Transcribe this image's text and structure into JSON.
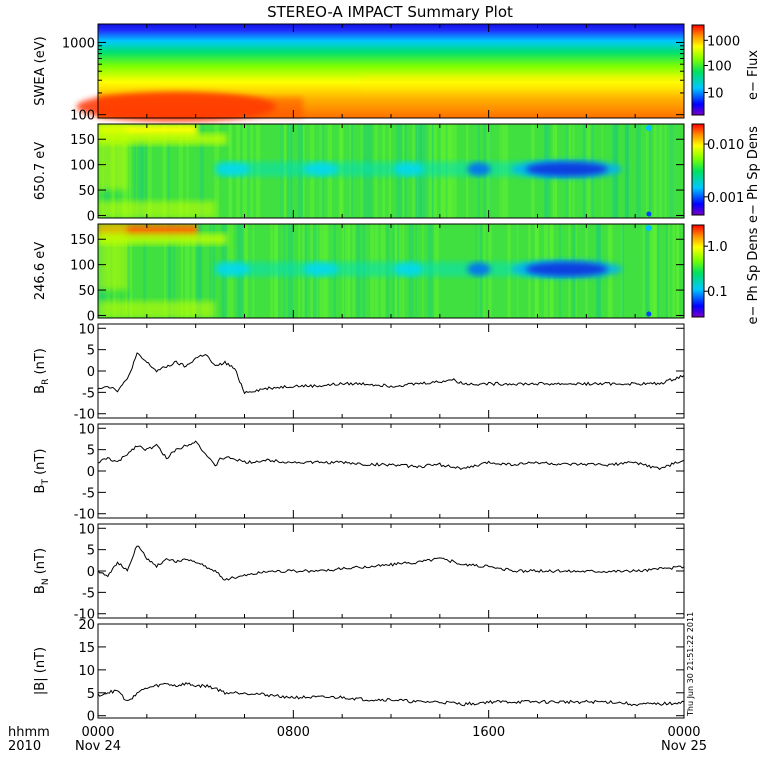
{
  "title": "STEREO-A IMPACT Summary Plot",
  "footer": {
    "hhmm_label": "hhmm",
    "year_label": "2010",
    "x_ticks": [
      "0000",
      "0800",
      "1600",
      "0000"
    ],
    "x_dates": [
      "Nov 24",
      "",
      "",
      "Nov 25"
    ]
  },
  "timestamp": "Thu Jun 30 21:51:22 2011",
  "chart_data": [
    {
      "type": "heatmap",
      "ylabel": "SWEA (eV)",
      "y_ticks": [
        "1000",
        "100"
      ],
      "yscale": "log",
      "ylim": [
        90,
        1800
      ],
      "colorbar": {
        "label": "e− Flux",
        "ticks": [
          "1000",
          "100",
          "10"
        ],
        "scale": "log"
      },
      "colors": [
        "#7a00c8",
        "#0000ff",
        "#00c8ff",
        "#00e060",
        "#7fff00",
        "#ffff00",
        "#ff9000",
        "#ff0000"
      ]
    },
    {
      "type": "heatmap",
      "ylabel": "650.7 eV",
      "y_ticks": [
        "150",
        "100",
        "50",
        "0"
      ],
      "ylim": [
        -5,
        180
      ],
      "colorbar": {
        "label": "e− Ph Sp Dens",
        "ticks": [
          "0.010",
          "0.001"
        ],
        "scale": "log"
      }
    },
    {
      "type": "heatmap",
      "ylabel": "246.6 eV",
      "y_ticks": [
        "150",
        "100",
        "50",
        "0"
      ],
      "ylim": [
        -5,
        180
      ],
      "colorbar": {
        "label": "e− Ph Sp Dens",
        "ticks": [
          "1.0",
          "0.1"
        ],
        "scale": "log"
      }
    },
    {
      "type": "line",
      "ylabel": "B_R (nT)",
      "ylabel_main": "B",
      "ylabel_sub": "R",
      "ylabel_unit": " (nT)",
      "y_ticks": [
        "10",
        "5",
        "0",
        "-5",
        "-10"
      ],
      "ylim": [
        -11,
        11
      ],
      "x_hours": [
        0,
        0.4,
        0.8,
        1.2,
        1.6,
        2,
        2.4,
        2.8,
        3.2,
        3.6,
        4,
        4.4,
        4.8,
        5.2,
        5.6,
        6,
        7,
        8,
        9,
        10,
        11,
        12,
        13,
        14,
        14.5,
        15,
        16,
        17,
        18,
        19,
        20,
        21,
        22,
        23,
        24
      ],
      "values": [
        -4,
        -3.5,
        -4.5,
        -2,
        4,
        2,
        0,
        1,
        2,
        1,
        3,
        4,
        1,
        2,
        0.5,
        -5,
        -4,
        -3.5,
        -3.5,
        -3,
        -3,
        -3.5,
        -3,
        -2.5,
        -2,
        -3,
        -3,
        -3,
        -3,
        -3,
        -3,
        -3,
        -3,
        -3,
        -1
      ]
    },
    {
      "type": "line",
      "ylabel": "B_T (nT)",
      "ylabel_main": "B",
      "ylabel_sub": "T",
      "ylabel_unit": " (nT)",
      "y_ticks": [
        "10",
        "5",
        "0",
        "-5",
        "-10"
      ],
      "ylim": [
        -11,
        11
      ],
      "x_hours": [
        0,
        0.4,
        0.8,
        1.2,
        1.6,
        2,
        2.4,
        2.8,
        3.2,
        3.6,
        4,
        4.4,
        4.8,
        5,
        5.5,
        6,
        7,
        8,
        9,
        10,
        11,
        12,
        13,
        14,
        15,
        16,
        17,
        18,
        19,
        20,
        21,
        22,
        23,
        24
      ],
      "values": [
        2,
        3,
        2,
        4,
        6,
        5,
        6,
        3,
        5,
        6,
        7,
        4,
        1,
        3,
        3,
        2,
        2.5,
        2,
        2,
        2,
        1.5,
        1.5,
        1,
        1.5,
        0.5,
        2,
        1.5,
        2,
        1.5,
        1.5,
        1.5,
        2,
        0.5,
        2.5
      ]
    },
    {
      "type": "line",
      "ylabel": "B_N (nT)",
      "ylabel_main": "B",
      "ylabel_sub": "N",
      "ylabel_unit": " (nT)",
      "y_ticks": [
        "10",
        "5",
        "0",
        "-5",
        "-10"
      ],
      "ylim": [
        -11,
        11
      ],
      "x_hours": [
        0,
        0.4,
        0.8,
        1.2,
        1.6,
        2,
        2.4,
        2.8,
        3.2,
        3.6,
        4,
        4.4,
        4.8,
        5.2,
        6,
        7,
        8,
        9,
        10,
        11,
        12,
        13,
        14,
        15,
        16,
        17,
        18,
        19,
        20,
        21,
        22,
        23,
        24
      ],
      "values": [
        0,
        -1,
        2,
        0,
        6,
        3,
        1,
        3,
        2,
        3,
        2,
        1,
        0,
        -2,
        -1,
        0,
        0,
        0,
        0.5,
        1,
        1.5,
        2,
        3,
        1.5,
        1,
        0,
        0,
        0,
        0,
        0,
        0,
        0.5,
        1
      ]
    },
    {
      "type": "line",
      "ylabel": "|B| (nT)",
      "ylabel_main": "|B|",
      "ylabel_sub": "",
      "ylabel_unit": " (nT)",
      "y_ticks": [
        "20",
        "15",
        "10",
        "5",
        "0"
      ],
      "ylim": [
        -0.5,
        20
      ],
      "x_hours": [
        0,
        0.4,
        0.8,
        1.2,
        1.6,
        2,
        2.4,
        2.8,
        3.2,
        3.6,
        4,
        4.4,
        4.8,
        5.2,
        6,
        7,
        8,
        9,
        10,
        11,
        12,
        13,
        14,
        15,
        16,
        17,
        18,
        19,
        20,
        21,
        22,
        23,
        24
      ],
      "values": [
        4.5,
        5,
        5.5,
        3,
        5,
        6,
        6.5,
        7,
        6.5,
        7,
        6.5,
        6.5,
        6,
        5,
        5,
        4.5,
        4,
        4,
        4,
        3.5,
        3.5,
        3,
        3,
        2.5,
        3,
        3,
        3,
        3,
        3,
        3,
        2.5,
        2.5,
        3
      ]
    }
  ]
}
